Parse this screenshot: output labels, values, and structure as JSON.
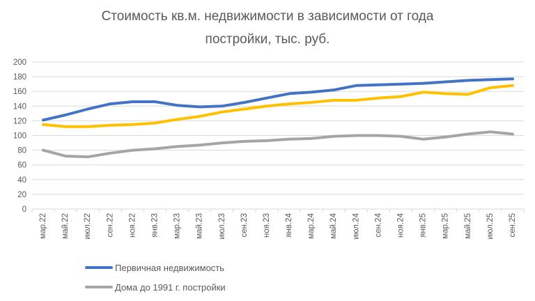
{
  "title": {
    "line1": "Стоимость кв.м. недвижимости в зависимости от года",
    "line2": "постройки, тыс. руб."
  },
  "colors": {
    "primary_series": "#4472C4",
    "secondary_series": "#FFC000",
    "old_houses_series": "#A5A5A5",
    "gridline": "#D9D9D9",
    "axis_text": "#595959"
  },
  "chart_data": {
    "type": "line",
    "title": "Стоимость кв.м. недвижимости в зависимости от года постройки, тыс. руб.",
    "categories": [
      "мар.22",
      "май.22",
      "июл.22",
      "сен.22",
      "ноя.22",
      "янв.23",
      "мар.23",
      "май.23",
      "июл.23",
      "сен.23",
      "ноя.23",
      "янв.24",
      "мар.24",
      "май.24",
      "июл.24",
      "сен.24",
      "ноя.24",
      "янв.25",
      "мар.25",
      "май.25",
      "июл.25",
      "сен.25"
    ],
    "series": [
      {
        "name": "Первичная недвижимость",
        "color": "#4472C4",
        "values": [
          121,
          128,
          136,
          143,
          146,
          146,
          141,
          139,
          140,
          145,
          151,
          157,
          159,
          162,
          168,
          169,
          170,
          171,
          173,
          175,
          176,
          177
        ]
      },
      {
        "name": "",
        "color": "#FFC000",
        "values": [
          115,
          112,
          112,
          114,
          115,
          117,
          122,
          126,
          132,
          136,
          140,
          143,
          145,
          148,
          148,
          151,
          153,
          159,
          157,
          156,
          165,
          168
        ]
      },
      {
        "name": "Дома до 1991 г. постройки",
        "color": "#A5A5A5",
        "values": [
          80,
          72,
          71,
          76,
          80,
          82,
          85,
          87,
          90,
          92,
          93,
          95,
          96,
          99,
          100,
          100,
          99,
          95,
          98,
          102,
          105,
          102
        ]
      }
    ],
    "ylim": [
      0,
      200
    ],
    "yticks": [
      0,
      20,
      40,
      60,
      80,
      100,
      120,
      140,
      160,
      180,
      200
    ],
    "grid": true,
    "x_labels_rotation": -90,
    "legend_position": "bottom-left"
  },
  "legend": {
    "items": [
      {
        "label": "Первичная недвижимость",
        "color": "#4472C4"
      },
      {
        "label": "Дома до 1991 г. постройки",
        "color": "#A5A5A5"
      }
    ]
  }
}
